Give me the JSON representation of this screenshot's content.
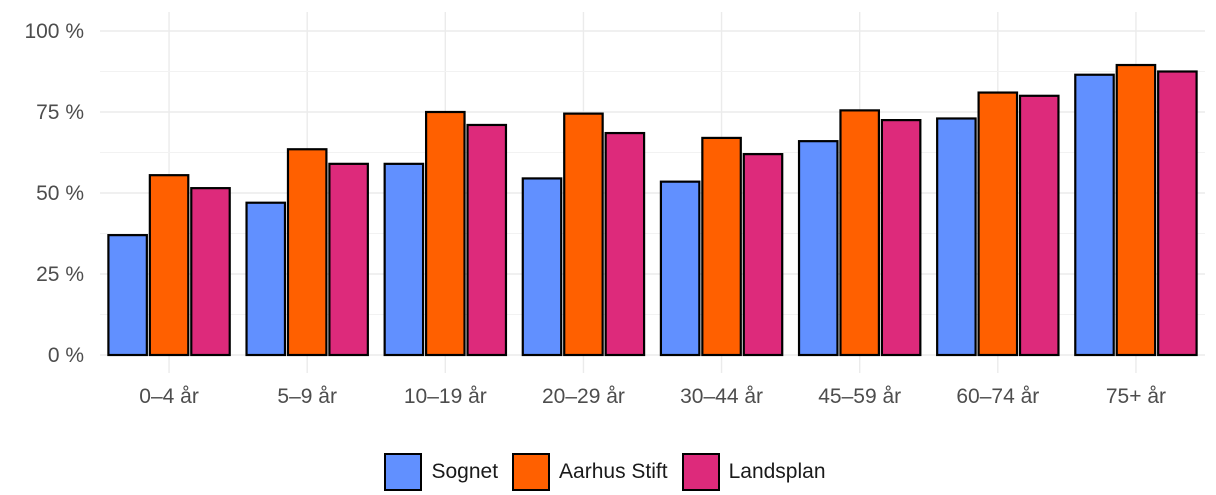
{
  "chart_data": {
    "type": "bar",
    "title": "",
    "xlabel": "",
    "ylabel": "",
    "categories": [
      "0–4 år",
      "5–9 år",
      "10–19 år",
      "20–29 år",
      "30–44 år",
      "45–59 år",
      "60–74 år",
      "75+ år"
    ],
    "ylim": [
      0,
      100
    ],
    "yticks": [
      0,
      25,
      50,
      75,
      100
    ],
    "ytick_labels": [
      "0 %",
      "25 %",
      "50 %",
      "75 %",
      "100 %"
    ],
    "grid": true,
    "legend_position": "bottom",
    "series": [
      {
        "name": "Sognet",
        "color": "#6190ff",
        "values": [
          37,
          47,
          59,
          54.5,
          53.5,
          66,
          73,
          86.5
        ]
      },
      {
        "name": "Aarhus Stift",
        "color": "#ff6000",
        "values": [
          55.5,
          63.5,
          75,
          74.5,
          67,
          75.5,
          81,
          89.5
        ]
      },
      {
        "name": "Landsplan",
        "color": "#dd2a7b",
        "values": [
          51.5,
          59,
          71,
          68.5,
          62,
          72.5,
          80,
          87.5
        ]
      }
    ]
  }
}
